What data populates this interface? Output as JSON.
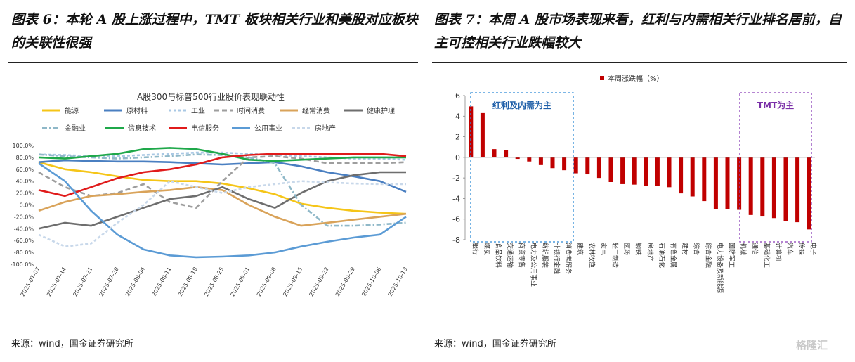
{
  "left_panel": {
    "title": "图表 6：本轮 A 股上涨过程中，TMT 板块相关行业和美股对应板块的关联性很强",
    "source": "来源：wind，国金证券研究所"
  },
  "right_panel": {
    "title": "图表 7：本周 A 股市场表现来看，红利与内需相关行业排名居前，自主可控相关行业跌幅较大",
    "source": "来源：wind，国金证券研究所"
  },
  "watermark": "格隆汇",
  "chart_data": [
    {
      "type": "line",
      "title": "A股300与标普500行业股价表现联动性",
      "ylim": [
        -100,
        100
      ],
      "y_ticks": [
        "100.0%",
        "80.0%",
        "60.0%",
        "40.0%",
        "20.0%",
        "0.0%",
        "-20.0%",
        "-40.0%",
        "-60.0%",
        "-80.0%",
        "-100.0%"
      ],
      "x_ticks": [
        "2025-07-07",
        "2025-07-14",
        "2025-07-21",
        "2025-07-28",
        "2025-08-04",
        "2025-08-11",
        "2025-08-18",
        "2025-08-25",
        "2025-09-01",
        "2025-09-08",
        "2025-09-15",
        "2025-09-22",
        "2025-09-29",
        "2025-10-06",
        "2025-10-13"
      ],
      "series": [
        {
          "name": "能源",
          "color": "#f5c518",
          "dash": "",
          "values": [
            72,
            60,
            55,
            48,
            42,
            40,
            40,
            36,
            28,
            18,
            2,
            -5,
            -10,
            -13,
            -15
          ]
        },
        {
          "name": "原材料",
          "color": "#4a7fc1",
          "dash": "",
          "values": [
            72,
            75,
            74,
            73,
            73,
            72,
            70,
            68,
            70,
            72,
            65,
            55,
            48,
            40,
            22
          ]
        },
        {
          "name": "工业",
          "color": "#a9c8e4",
          "dash": "4 3",
          "values": [
            85,
            84,
            82,
            82,
            84,
            86,
            88,
            88,
            86,
            84,
            82,
            80,
            78,
            78,
            76
          ]
        },
        {
          "name": "时间消费",
          "color": "#9e9e9e",
          "dash": "7 4",
          "values": [
            55,
            30,
            15,
            20,
            35,
            5,
            -5,
            40,
            80,
            82,
            78,
            70,
            70,
            70,
            72
          ]
        },
        {
          "name": "经常消费",
          "color": "#d9a35a",
          "dash": "",
          "values": [
            -10,
            5,
            15,
            18,
            22,
            25,
            30,
            25,
            0,
            -20,
            -35,
            -30,
            -25,
            -20,
            -15
          ]
        },
        {
          "name": "健康护理",
          "color": "#6e6e6e",
          "dash": "",
          "values": [
            -40,
            -30,
            -35,
            -20,
            -5,
            10,
            15,
            30,
            10,
            -5,
            20,
            40,
            50,
            55,
            55
          ]
        },
        {
          "name": "金融业",
          "color": "#8fb8c8",
          "dash": "7 3 2 3",
          "values": [
            85,
            82,
            80,
            78,
            80,
            82,
            85,
            84,
            80,
            70,
            0,
            -35,
            -35,
            -33,
            -30
          ]
        },
        {
          "name": "信息技术",
          "color": "#1fa84a",
          "dash": "",
          "values": [
            80,
            78,
            82,
            86,
            94,
            96,
            94,
            86,
            76,
            74,
            76,
            78,
            80,
            80,
            80
          ]
        },
        {
          "name": "电信服务",
          "color": "#e01b1b",
          "dash": "",
          "values": [
            25,
            15,
            30,
            45,
            55,
            60,
            68,
            80,
            84,
            86,
            86,
            86,
            86,
            86,
            82
          ]
        },
        {
          "name": "公用事业",
          "color": "#5b9bd5",
          "dash": "",
          "values": [
            70,
            40,
            -10,
            -50,
            -75,
            -85,
            -88,
            -87,
            -85,
            -80,
            -70,
            -62,
            -55,
            -50,
            -20
          ]
        },
        {
          "name": "房地产",
          "color": "#c8d8ea",
          "dash": "4 3",
          "values": [
            -50,
            -70,
            -65,
            -30,
            0,
            40,
            30,
            20,
            30,
            35,
            40,
            38,
            36,
            35,
            35
          ]
        }
      ]
    },
    {
      "type": "bar",
      "legend": "本周涨跌幅（%）",
      "ylim": [
        -8,
        6
      ],
      "y_ticks": [
        6,
        4,
        2,
        0,
        -2,
        -4,
        -6,
        -8
      ],
      "categories": [
        "银行",
        "煤炭",
        "食品饮料",
        "交通运输",
        "商贸零售",
        "电力及公用事业",
        "纺织服装",
        "非银行金融",
        "消费者服务",
        "建筑",
        "农林牧渔",
        "家电",
        "轻工制造",
        "医药",
        "钢铁",
        "房地产",
        "石油石化",
        "有色金属",
        "建材",
        "综合",
        "综合金融",
        "电力设备及新能源",
        "国防军工",
        "机械",
        "通信",
        "基础化工",
        "计算机",
        "汽车",
        "传媒",
        "电子"
      ],
      "values": [
        4.95,
        4.3,
        0.8,
        0.7,
        -0.15,
        -0.4,
        -0.75,
        -1.05,
        -1.25,
        -1.55,
        -1.65,
        -2.0,
        -2.4,
        -2.6,
        -2.65,
        -2.75,
        -2.8,
        -2.9,
        -3.5,
        -3.8,
        -4.25,
        -5.0,
        -5.0,
        -5.1,
        -5.6,
        -5.75,
        -5.9,
        -6.2,
        -6.3,
        -7.0
      ],
      "annotations": [
        "红利及内需为主",
        "TMT为主"
      ],
      "color": "#c00000"
    }
  ]
}
